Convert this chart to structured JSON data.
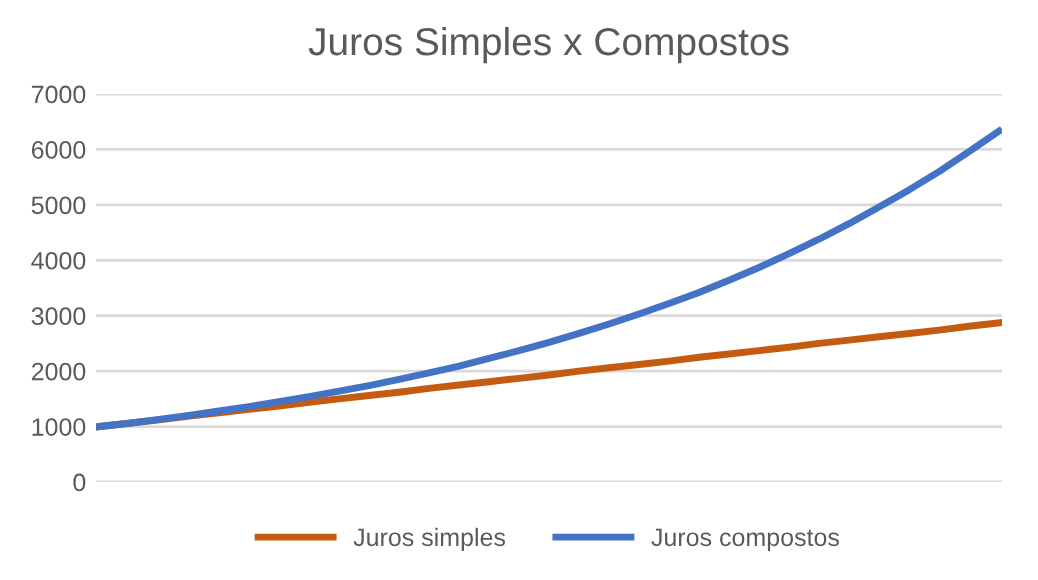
{
  "chart_data": {
    "type": "line",
    "title": "Juros Simples x Compostos",
    "categories": [
      null,
      null,
      null,
      null,
      null,
      null,
      null,
      null,
      null,
      null,
      null,
      null,
      null,
      null,
      null,
      null,
      null,
      null,
      null,
      null,
      null,
      null,
      null,
      null,
      null,
      null,
      null,
      null,
      null,
      null,
      null
    ],
    "series": [
      {
        "name": "Juros simples",
        "color": "#c55a11",
        "values": [
          1000,
          1060,
          1120,
          1190,
          1250,
          1310,
          1370,
          1440,
          1500,
          1560,
          1620,
          1690,
          1750,
          1810,
          1870,
          1930,
          2000,
          2060,
          2120,
          2180,
          2250,
          2310,
          2370,
          2430,
          2500,
          2560,
          2620,
          2680,
          2740,
          2810,
          2870
        ]
      },
      {
        "name": "Juros compostos",
        "color": "#4472c4",
        "values": [
          1000,
          1060,
          1130,
          1200,
          1280,
          1360,
          1450,
          1540,
          1640,
          1740,
          1850,
          1970,
          2090,
          2230,
          2370,
          2520,
          2680,
          2850,
          3030,
          3220,
          3420,
          3640,
          3870,
          4120,
          4380,
          4660,
          4960,
          5270,
          5600,
          5960,
          6330
        ]
      }
    ],
    "ylim": [
      0,
      7000
    ],
    "yticks": [
      0,
      1000,
      2000,
      3000,
      4000,
      5000,
      6000,
      7000
    ],
    "grid": "y",
    "legend": "bottom",
    "tick_labels": "y",
    "marker": "none",
    "line_style": "solid"
  }
}
